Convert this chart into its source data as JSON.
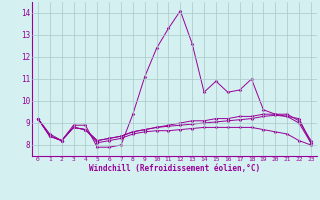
{
  "x": [
    0,
    1,
    2,
    3,
    4,
    5,
    6,
    7,
    8,
    9,
    10,
    11,
    12,
    13,
    14,
    15,
    16,
    17,
    18,
    19,
    20,
    21,
    22,
    23
  ],
  "line1": [
    9.2,
    8.4,
    8.2,
    8.9,
    8.9,
    7.9,
    7.9,
    8.0,
    9.4,
    11.1,
    12.4,
    13.3,
    14.1,
    12.6,
    10.4,
    10.9,
    10.4,
    10.5,
    11.0,
    9.6,
    9.4,
    9.3,
    9.2,
    8.1
  ],
  "line2": [
    9.2,
    8.4,
    8.2,
    8.8,
    8.7,
    8.2,
    8.3,
    8.4,
    8.6,
    8.7,
    8.8,
    8.9,
    9.0,
    9.1,
    9.1,
    9.2,
    9.2,
    9.3,
    9.3,
    9.4,
    9.4,
    9.4,
    9.1,
    8.2
  ],
  "line3": [
    9.2,
    8.4,
    8.2,
    8.8,
    8.7,
    8.2,
    8.3,
    8.4,
    8.6,
    8.7,
    8.8,
    8.85,
    8.9,
    8.95,
    9.0,
    9.05,
    9.1,
    9.15,
    9.2,
    9.3,
    9.35,
    9.3,
    9.0,
    8.1
  ],
  "line4": [
    9.2,
    8.5,
    8.2,
    8.8,
    8.7,
    8.1,
    8.2,
    8.3,
    8.5,
    8.6,
    8.65,
    8.65,
    8.7,
    8.75,
    8.8,
    8.8,
    8.8,
    8.8,
    8.8,
    8.7,
    8.6,
    8.5,
    8.2,
    8.0
  ],
  "line_color": "#990099",
  "bg_color": "#d4f0f0",
  "grid_color": "#a8c8c8",
  "xlabel": "Windchill (Refroidissement éolien,°C)",
  "ylim": [
    7.5,
    14.5
  ],
  "xlim": [
    -0.5,
    23.5
  ],
  "yticks": [
    8,
    9,
    10,
    11,
    12,
    13,
    14
  ],
  "xticks": [
    0,
    1,
    2,
    3,
    4,
    5,
    6,
    7,
    8,
    9,
    10,
    11,
    12,
    13,
    14,
    15,
    16,
    17,
    18,
    19,
    20,
    21,
    22,
    23
  ]
}
